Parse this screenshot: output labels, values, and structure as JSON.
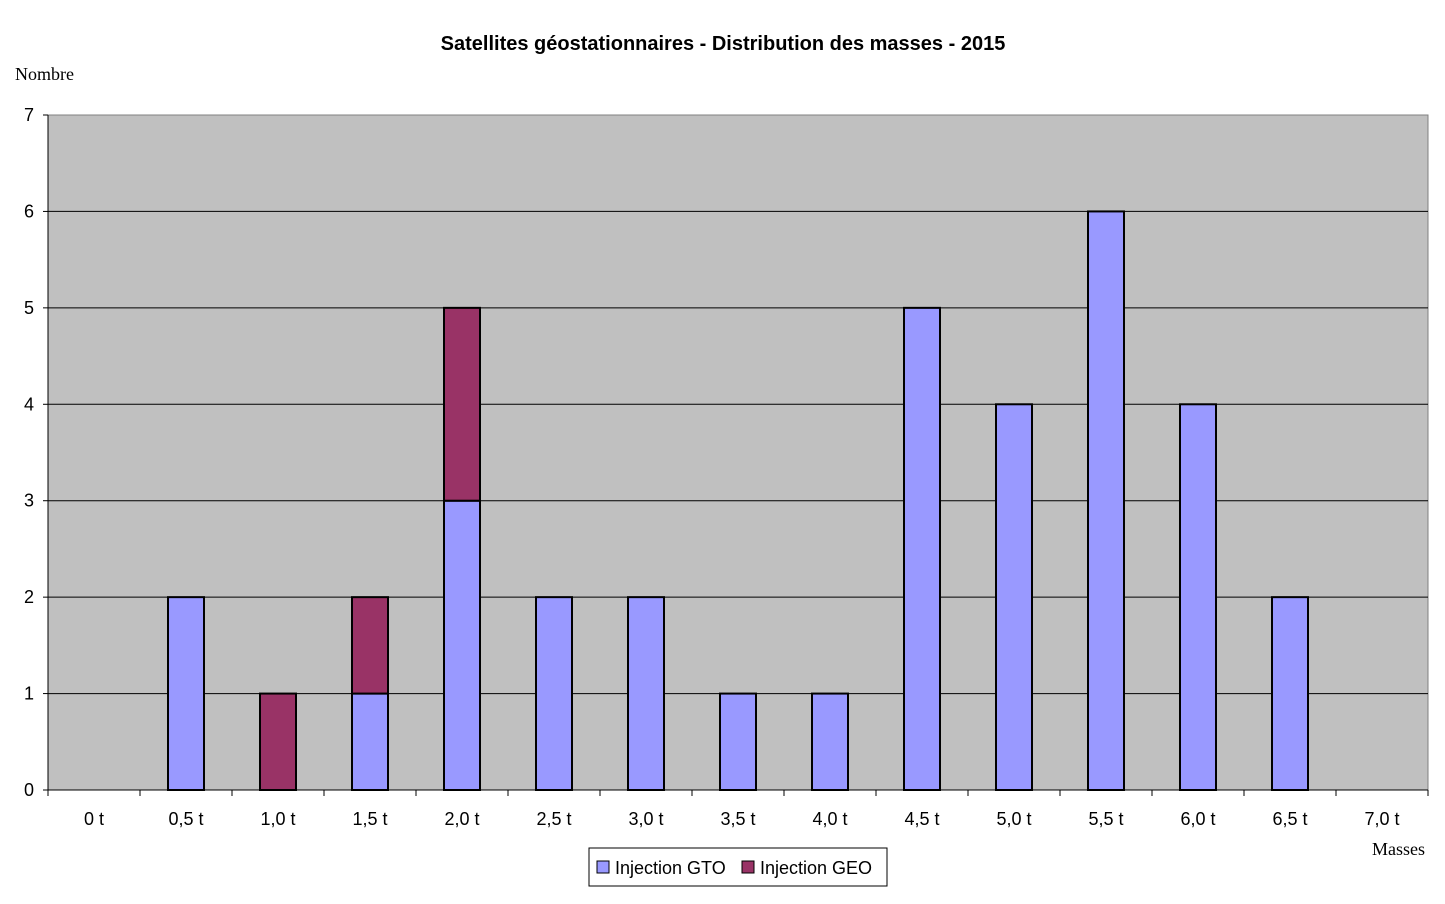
{
  "chart_data": {
    "type": "bar",
    "stacked": true,
    "title": "Satellites géostationnaires - Distribution des masses - 2015",
    "ylabel": "Nombre",
    "xlabel": "Masses",
    "ylim": [
      0,
      7
    ],
    "yticks": [
      "0",
      "1",
      "2",
      "3",
      "4",
      "5",
      "6",
      "7"
    ],
    "categories": [
      "0 t",
      "0,5 t",
      "1,0 t",
      "1,5 t",
      "2,0 t",
      "2,5 t",
      "3,0 t",
      "3,5 t",
      "4,0 t",
      "4,5 t",
      "5,0 t",
      "5,5 t",
      "6,0 t",
      "6,5 t",
      "7,0 t"
    ],
    "series": [
      {
        "name": "Injection GTO",
        "color": "#9999ff",
        "values": [
          0,
          2,
          0,
          1,
          3,
          2,
          2,
          1,
          1,
          5,
          4,
          6,
          4,
          2,
          0
        ]
      },
      {
        "name": "Injection GEO",
        "color": "#993366",
        "values": [
          0,
          0,
          1,
          1,
          2,
          0,
          0,
          0,
          0,
          0,
          0,
          0,
          0,
          0,
          0
        ]
      }
    ],
    "grid": true,
    "plot_background": "#c0c0c0",
    "legend_position": "bottom"
  }
}
